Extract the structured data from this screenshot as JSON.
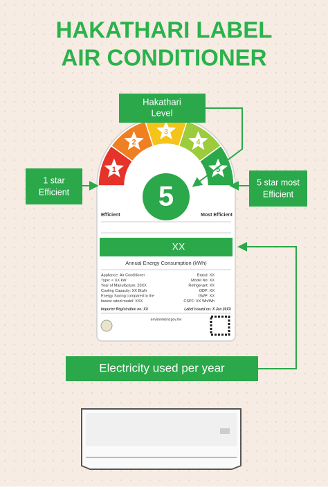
{
  "header": {
    "title_line1": "HAKATHARI LABEL",
    "title_line2": "AIR CONDITIONER"
  },
  "callouts": {
    "level": [
      "Hakathari",
      "Level"
    ],
    "one_star": [
      "1 star",
      "Efficient"
    ],
    "five_star": [
      "5 star most",
      "Efficient"
    ],
    "electricity": "Electricity used per year"
  },
  "label": {
    "stars": [
      "1",
      "2",
      "3",
      "4",
      "5"
    ],
    "rating": "5",
    "left_caption": "Efficient",
    "right_caption": "Most Efficient",
    "consumption_value": "XX",
    "consumption_caption": "Annual Energy Consumption (kWh)",
    "specs_left": [
      "Appliance: Air Conditioner",
      "Type: < XX kW",
      "Year of Manufacture: 20XX",
      "Cooling Capacity: XX Btu/h",
      "Energy Saving compared to the",
      "lowest rated model: XXX"
    ],
    "specs_right": [
      "Brand: XX",
      "Model No: XX",
      "Refrigerant: XX",
      "ODP: XX",
      "GWP: XX",
      "CSPF: XX Wh/Wh"
    ],
    "importer": "Importer Registration no: XX",
    "issued": "Label issued on: X Jan 20XX",
    "website": "environment.gov.mv"
  }
}
